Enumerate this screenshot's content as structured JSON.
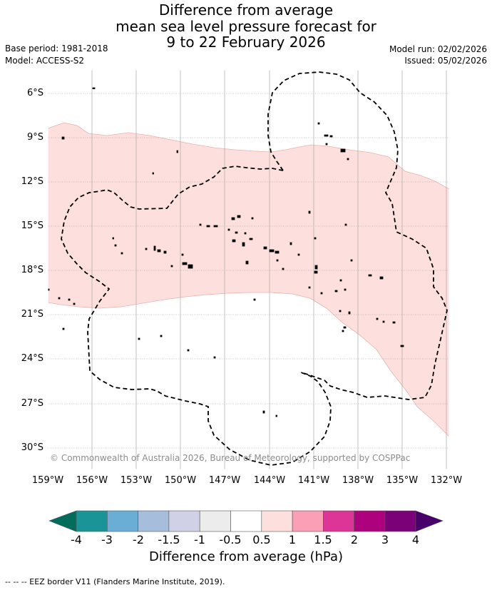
{
  "title": {
    "line1": "Difference from average",
    "line2": "mean sea level pressure forecast for",
    "line3": "9 to 22 February 2026"
  },
  "meta": {
    "base_period": "Base period: 1981-2018",
    "model": "Model: ACCESS-S2",
    "model_run": "Model run: 02/02/2026",
    "issued": "Issued: 05/02/2026"
  },
  "map": {
    "lat_labels": [
      "6°S",
      "9°S",
      "12°S",
      "15°S",
      "18°S",
      "21°S",
      "24°S",
      "27°S",
      "30°S"
    ],
    "lon_labels": [
      "159°W",
      "156°W",
      "153°W",
      "150°W",
      "147°W",
      "144°W",
      "141°W",
      "138°W",
      "135°W",
      "132°W"
    ],
    "shaded_category": "0.5 to 1",
    "shaded_color": "#fde0dd",
    "copyright": "© Commonwealth of Australia 2026, Bureau of Meteorology, supported by COSPPac"
  },
  "colorbar": {
    "title": "Difference from average (hPa)",
    "labels": [
      "-4",
      "-3",
      "-2",
      "-1.5",
      "-1",
      "-0.5",
      "0.5",
      "1",
      "1.5",
      "2",
      "3",
      "4"
    ],
    "colors": [
      "#1b9497",
      "#6aaed6",
      "#a6bddb",
      "#d0d1e6",
      "#ececec",
      "#ffffff",
      "#fde0dd",
      "#fa9fb5",
      "#dd3497",
      "#ae017e",
      "#7a0177"
    ],
    "low_extend_color": "#016c59",
    "high_extend_color": "#49006a"
  },
  "footnote": "--  --  -- EEZ border V11 (Flanders Marine Institute, 2019)."
}
